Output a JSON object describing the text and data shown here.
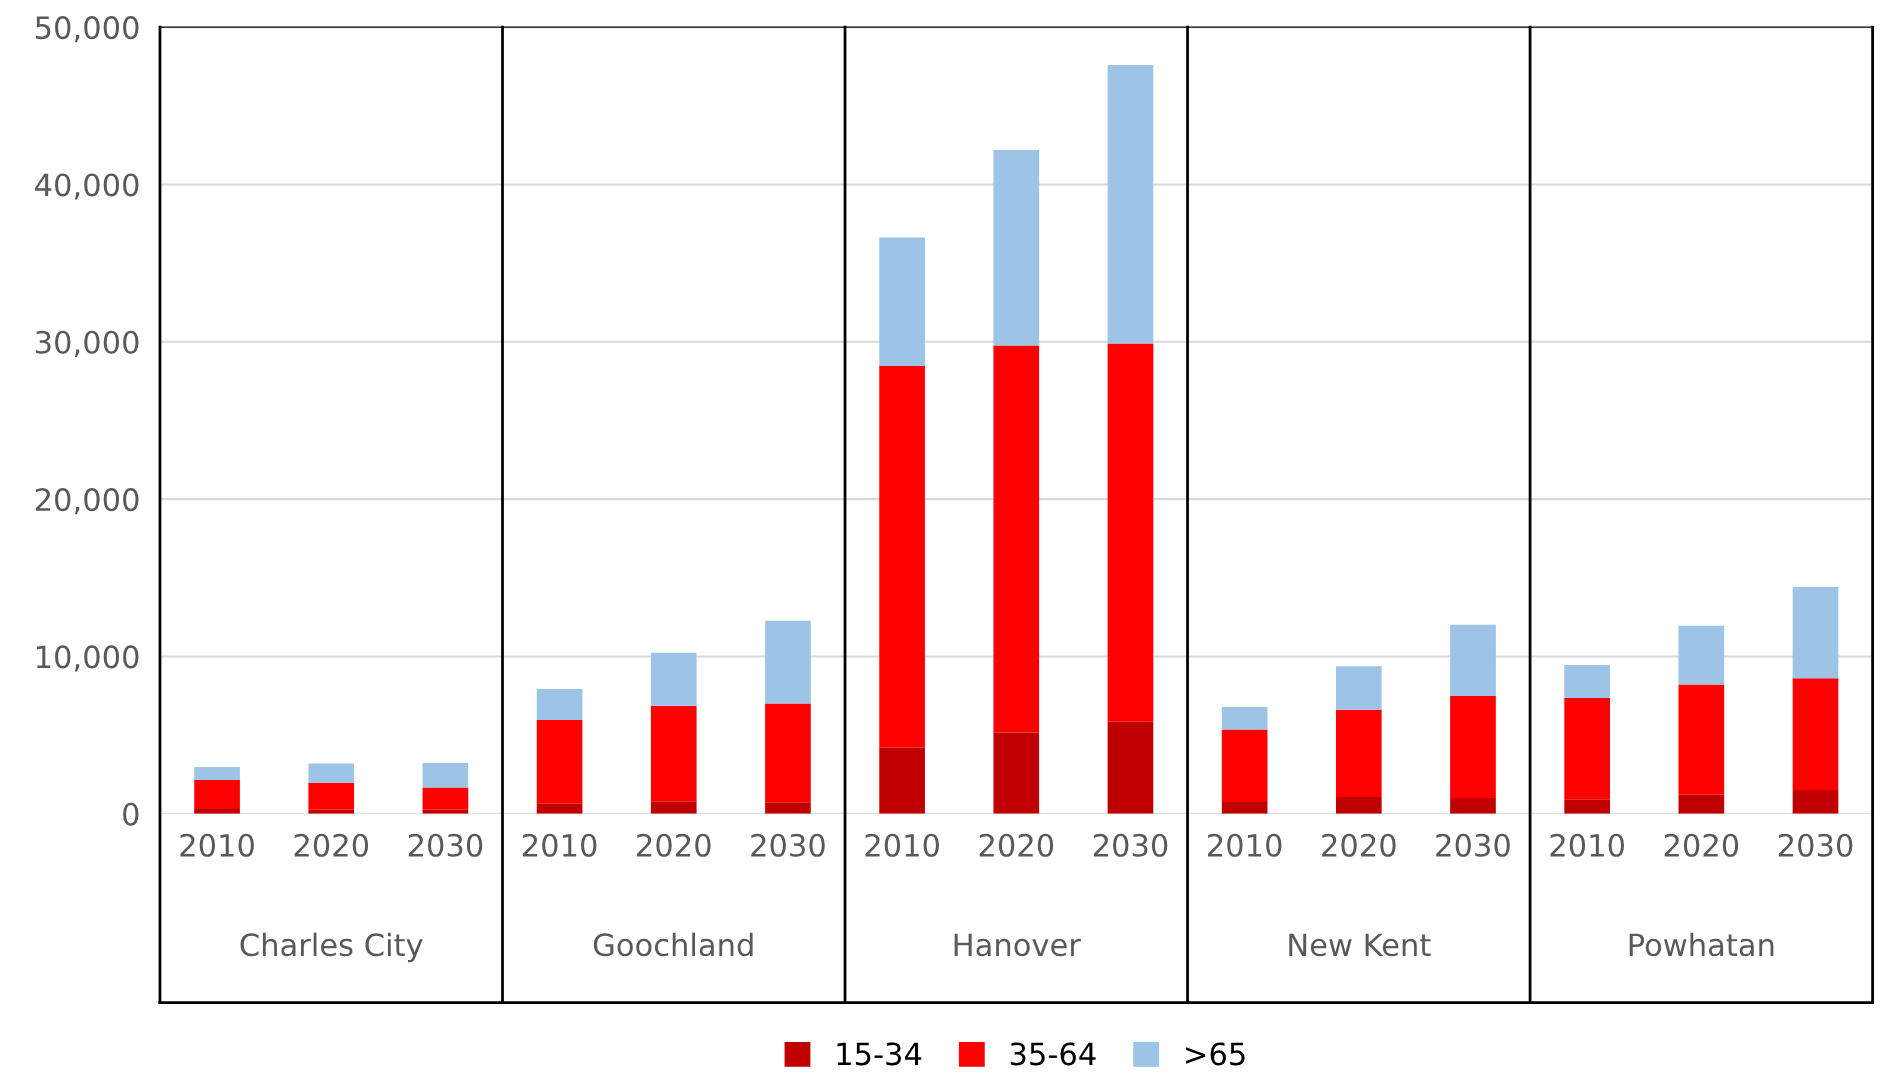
{
  "chart_data": {
    "type": "bar",
    "stacked": true,
    "categories": [
      "2010",
      "2020",
      "2030",
      "2010",
      "2020",
      "2030",
      "2010",
      "2020",
      "2030",
      "2010",
      "2020",
      "2030",
      "2010",
      "2020",
      "2030"
    ],
    "annotations": [
      "Charles City",
      "Goochland",
      "Hanover",
      "New Kent",
      "Powhatan"
    ],
    "series": [
      {
        "name": "15-34",
        "color": "#c00000",
        "values": [
          300,
          250,
          250,
          640,
          790,
          730,
          4190,
          5170,
          5850,
          740,
          1060,
          1000,
          920,
          1200,
          1510
        ]
      },
      {
        "name": "35-64",
        "color": "#ff0000",
        "values": [
          1840,
          1720,
          1420,
          5320,
          6080,
          6280,
          24270,
          24590,
          24040,
          4620,
          5550,
          6480,
          6440,
          7020,
          7110
        ]
      },
      {
        "name": ">65",
        "color": "#9dc3e6",
        "values": [
          830,
          1230,
          1550,
          1970,
          3370,
          5250,
          8170,
          12430,
          17700,
          1420,
          2760,
          4530,
          2090,
          3730,
          5800
        ]
      }
    ],
    "ylim": [
      0,
      50000
    ],
    "yticks": [
      {
        "value": 0,
        "label": "0"
      },
      {
        "value": 10000,
        "label": "10,000"
      },
      {
        "value": 20000,
        "label": "20,000"
      },
      {
        "value": 30000,
        "label": "30,000"
      },
      {
        "value": 40000,
        "label": "40,000"
      },
      {
        "value": 50000,
        "label": "50,000"
      }
    ],
    "grid": "y",
    "legend": "bottom"
  }
}
